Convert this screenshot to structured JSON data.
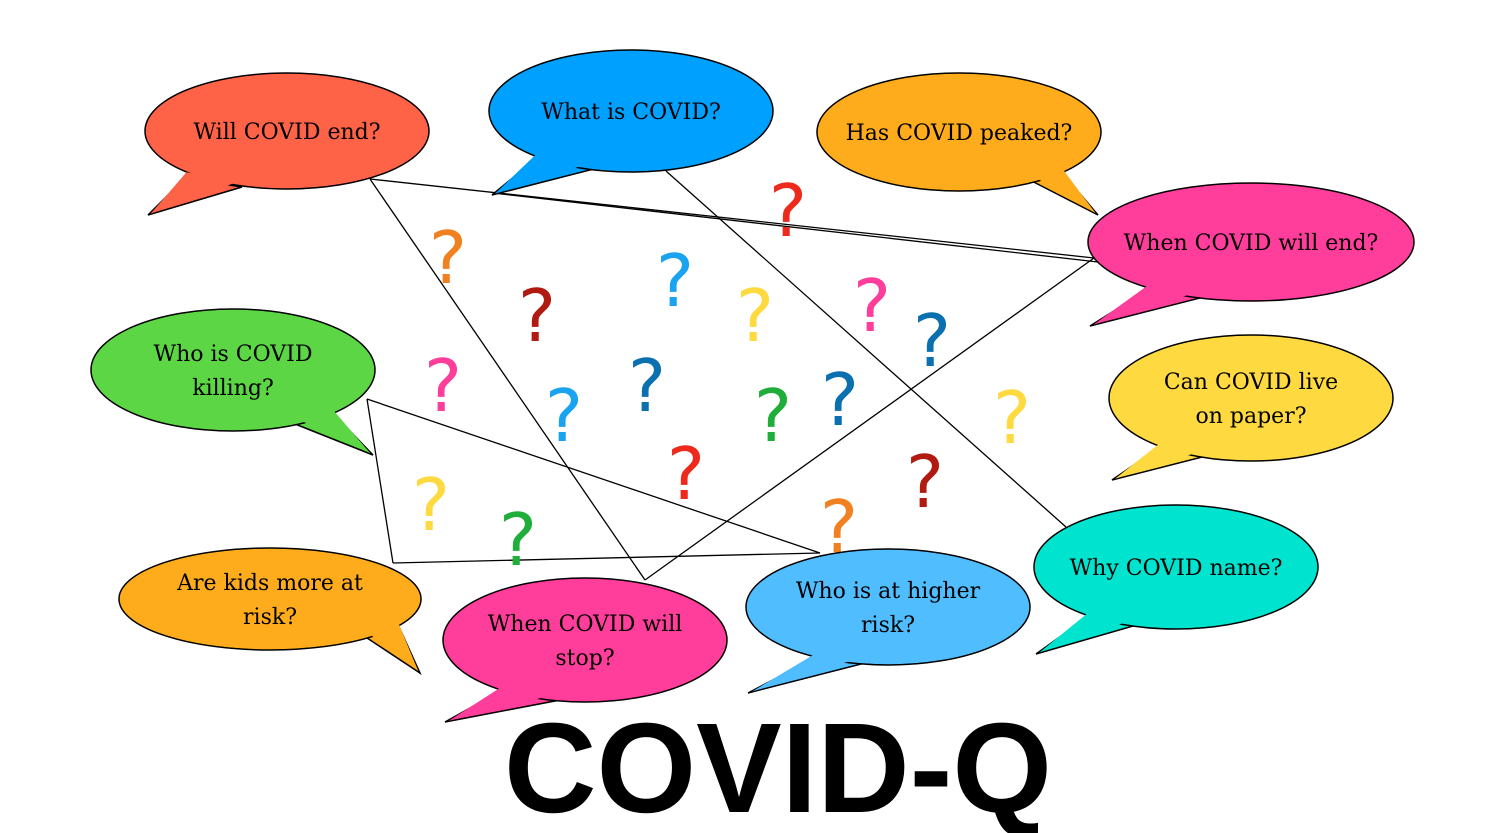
{
  "title": "COVID-Q",
  "bubbles": [
    {
      "lines": [
        "Will COVID end?"
      ],
      "color": "#ff6347"
    },
    {
      "lines": [
        "What is COVID?"
      ],
      "color": "#00a0ff"
    },
    {
      "lines": [
        "Has COVID peaked?"
      ],
      "color": "#ffac1c"
    },
    {
      "lines": [
        "When COVID will end?"
      ],
      "color": "#ff3d9a"
    },
    {
      "lines": [
        "Who is COVID",
        "killing?"
      ],
      "color": "#5cd644"
    },
    {
      "lines": [
        "Can COVID live",
        "on paper?"
      ],
      "color": "#ffd940"
    },
    {
      "lines": [
        "Are kids more at",
        "risk?"
      ],
      "color": "#ffac1c"
    },
    {
      "lines": [
        "When COVID will",
        "stop?"
      ],
      "color": "#ff3d9a"
    },
    {
      "lines": [
        "Who is at higher",
        "risk?"
      ],
      "color": "#50bdff"
    },
    {
      "lines": [
        "Why COVID name?"
      ],
      "color": "#00e4cf"
    }
  ],
  "question_marks": [
    {
      "glyph": "?",
      "color": "#ee2a1c"
    },
    {
      "glyph": "?",
      "color": "#f08020"
    },
    {
      "glyph": "?",
      "color": "#19a3f0"
    },
    {
      "glyph": "?",
      "color": "#b01a10"
    },
    {
      "glyph": "?",
      "color": "#ffd940"
    },
    {
      "glyph": "?",
      "color": "#ff3d9a"
    },
    {
      "glyph": "?",
      "color": "#0b70b0"
    },
    {
      "glyph": "?",
      "color": "#ff3d9a"
    },
    {
      "glyph": "?",
      "color": "#0b70b0"
    },
    {
      "glyph": "?",
      "color": "#19a3f0"
    },
    {
      "glyph": "?",
      "color": "#1fae3a"
    },
    {
      "glyph": "?",
      "color": "#0b70b0"
    },
    {
      "glyph": "?",
      "color": "#ffd940"
    },
    {
      "glyph": "?",
      "color": "#ee2a1c"
    },
    {
      "glyph": "?",
      "color": "#b01a10"
    },
    {
      "glyph": "?",
      "color": "#ffd940"
    },
    {
      "glyph": "?",
      "color": "#1fae3a"
    },
    {
      "glyph": "?",
      "color": "#f08020"
    }
  ]
}
